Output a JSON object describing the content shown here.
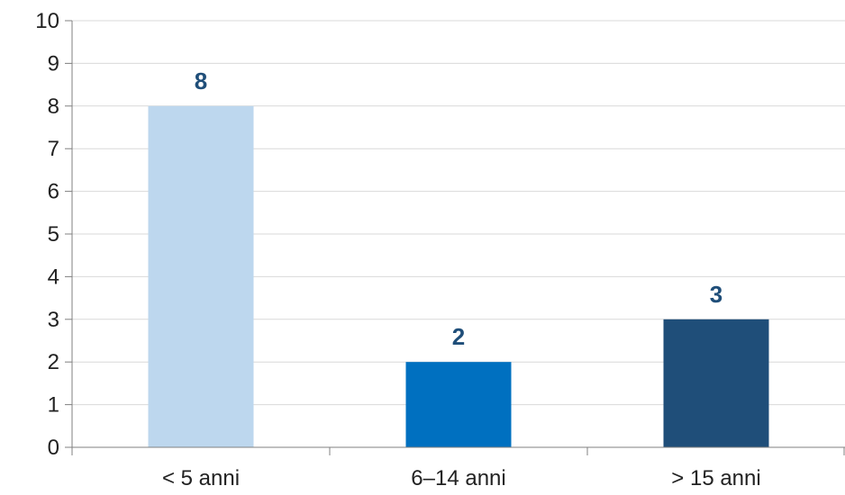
{
  "chart_data": {
    "type": "bar",
    "categories": [
      "< 5 anni",
      "6–14 anni",
      "> 15 anni"
    ],
    "values": [
      8,
      2,
      3
    ],
    "data_labels": [
      "8",
      "2",
      "3"
    ],
    "bar_colors": [
      "#BDD7EE",
      "#0070C0",
      "#1F4E79"
    ],
    "data_label_color": "#1F4E79",
    "title": "",
    "xlabel": "",
    "ylabel": "",
    "ylim": [
      0,
      10
    ],
    "yticks": [
      0,
      1,
      2,
      3,
      4,
      5,
      6,
      7,
      8,
      9,
      10
    ],
    "grid": true,
    "legend": "none"
  }
}
